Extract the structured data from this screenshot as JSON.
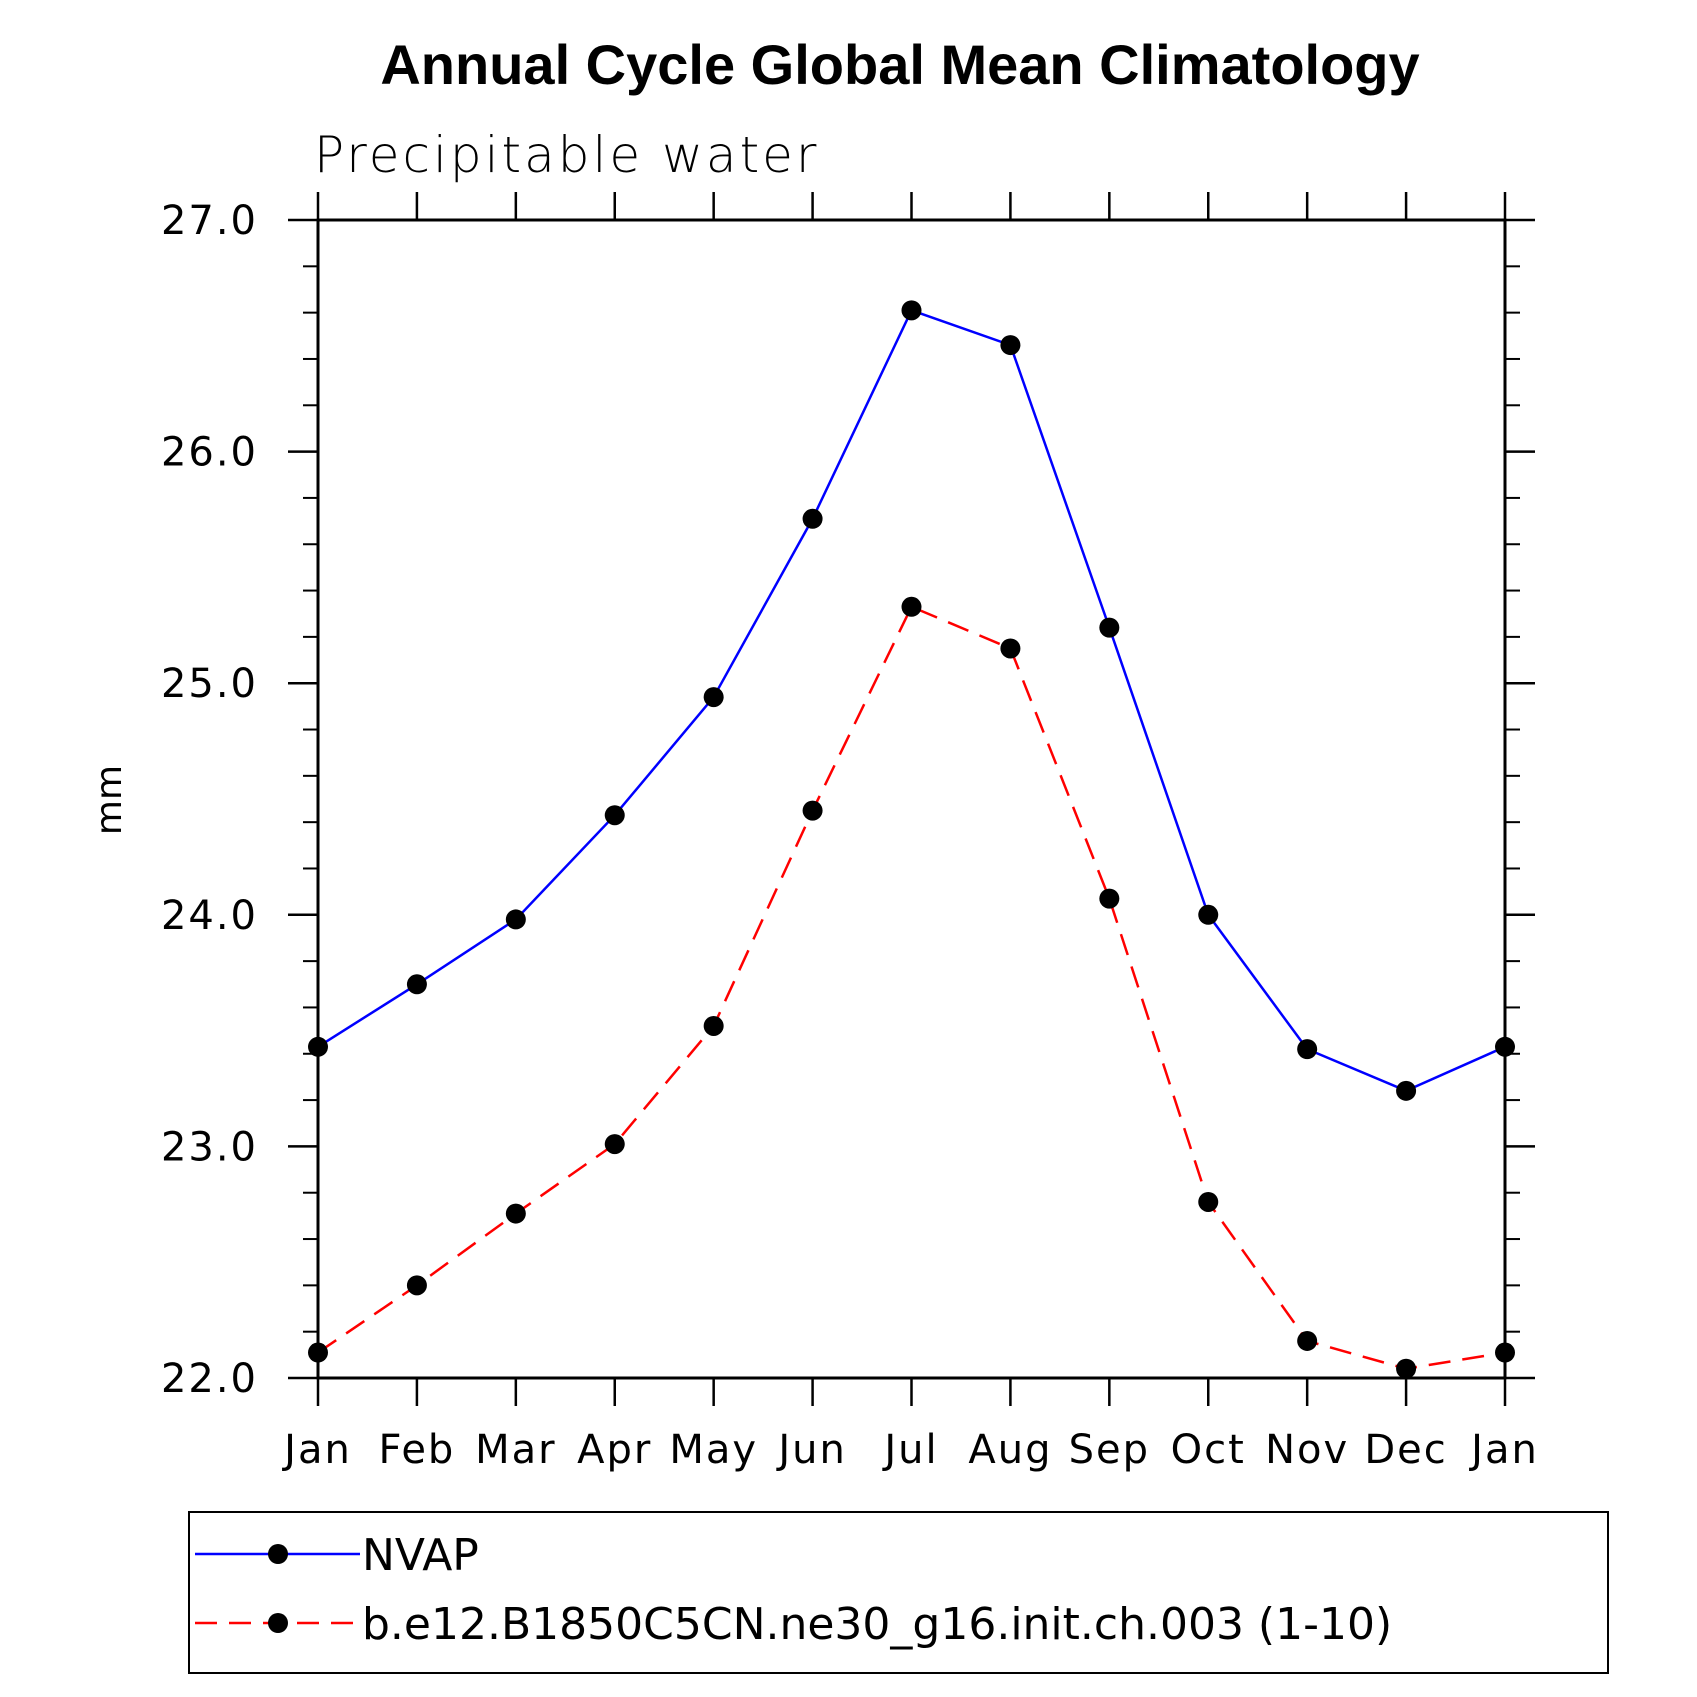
{
  "chart_data": {
    "type": "line",
    "title": "Annual Cycle Global Mean Climatology",
    "subtitle": "Precipitable water",
    "xlabel": "",
    "ylabel": "mm",
    "categories": [
      "Jan",
      "Feb",
      "Mar",
      "Apr",
      "May",
      "Jun",
      "Jul",
      "Aug",
      "Sep",
      "Oct",
      "Nov",
      "Dec",
      "Jan"
    ],
    "ylim": [
      22.0,
      27.0
    ],
    "yticks": [
      "22.0",
      "23.0",
      "24.0",
      "25.0",
      "26.0",
      "27.0"
    ],
    "ytick_values": [
      22.0,
      23.0,
      24.0,
      25.0,
      26.0,
      27.0
    ],
    "grid": false,
    "legend_position": "bottom",
    "series": [
      {
        "name": "NVAP",
        "color": "#0000ff",
        "line_style": "solid",
        "marker": "filled-circle",
        "values": [
          23.43,
          23.7,
          23.98,
          24.43,
          24.94,
          25.71,
          26.61,
          26.46,
          25.24,
          24.0,
          23.42,
          23.24,
          23.43
        ]
      },
      {
        "name": "b.e12.B1850C5CN.ne30_g16.init.ch.003 (1-10)",
        "color": "#ff0000",
        "line_style": "dashed",
        "marker": "filled-circle",
        "values": [
          22.11,
          22.4,
          22.71,
          23.01,
          23.52,
          24.45,
          25.33,
          25.15,
          24.07,
          22.76,
          22.16,
          22.04,
          22.11
        ]
      }
    ]
  }
}
